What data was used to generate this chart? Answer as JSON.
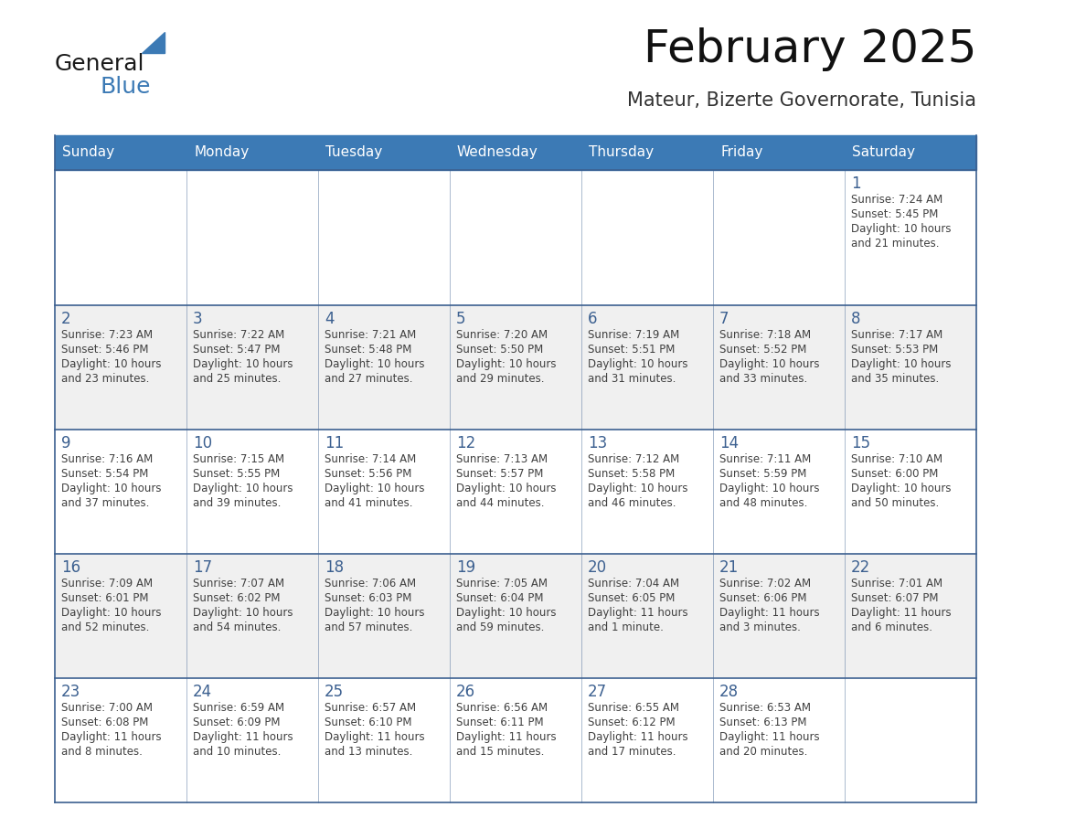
{
  "title": "February 2025",
  "subtitle": "Mateur, Bizerte Governorate, Tunisia",
  "header_color": "#3C7AB5",
  "header_text_color": "#FFFFFF",
  "cell_bg_white": "#FFFFFF",
  "cell_bg_gray": "#F0F0F0",
  "border_color": "#3C6090",
  "day_num_color": "#3C6090",
  "text_color": "#404040",
  "days_of_week": [
    "Sunday",
    "Monday",
    "Tuesday",
    "Wednesday",
    "Thursday",
    "Friday",
    "Saturday"
  ],
  "weeks": [
    [
      {
        "day": "",
        "info": ""
      },
      {
        "day": "",
        "info": ""
      },
      {
        "day": "",
        "info": ""
      },
      {
        "day": "",
        "info": ""
      },
      {
        "day": "",
        "info": ""
      },
      {
        "day": "",
        "info": ""
      },
      {
        "day": "1",
        "info": "Sunrise: 7:24 AM\nSunset: 5:45 PM\nDaylight: 10 hours\nand 21 minutes."
      }
    ],
    [
      {
        "day": "2",
        "info": "Sunrise: 7:23 AM\nSunset: 5:46 PM\nDaylight: 10 hours\nand 23 minutes."
      },
      {
        "day": "3",
        "info": "Sunrise: 7:22 AM\nSunset: 5:47 PM\nDaylight: 10 hours\nand 25 minutes."
      },
      {
        "day": "4",
        "info": "Sunrise: 7:21 AM\nSunset: 5:48 PM\nDaylight: 10 hours\nand 27 minutes."
      },
      {
        "day": "5",
        "info": "Sunrise: 7:20 AM\nSunset: 5:50 PM\nDaylight: 10 hours\nand 29 minutes."
      },
      {
        "day": "6",
        "info": "Sunrise: 7:19 AM\nSunset: 5:51 PM\nDaylight: 10 hours\nand 31 minutes."
      },
      {
        "day": "7",
        "info": "Sunrise: 7:18 AM\nSunset: 5:52 PM\nDaylight: 10 hours\nand 33 minutes."
      },
      {
        "day": "8",
        "info": "Sunrise: 7:17 AM\nSunset: 5:53 PM\nDaylight: 10 hours\nand 35 minutes."
      }
    ],
    [
      {
        "day": "9",
        "info": "Sunrise: 7:16 AM\nSunset: 5:54 PM\nDaylight: 10 hours\nand 37 minutes."
      },
      {
        "day": "10",
        "info": "Sunrise: 7:15 AM\nSunset: 5:55 PM\nDaylight: 10 hours\nand 39 minutes."
      },
      {
        "day": "11",
        "info": "Sunrise: 7:14 AM\nSunset: 5:56 PM\nDaylight: 10 hours\nand 41 minutes."
      },
      {
        "day": "12",
        "info": "Sunrise: 7:13 AM\nSunset: 5:57 PM\nDaylight: 10 hours\nand 44 minutes."
      },
      {
        "day": "13",
        "info": "Sunrise: 7:12 AM\nSunset: 5:58 PM\nDaylight: 10 hours\nand 46 minutes."
      },
      {
        "day": "14",
        "info": "Sunrise: 7:11 AM\nSunset: 5:59 PM\nDaylight: 10 hours\nand 48 minutes."
      },
      {
        "day": "15",
        "info": "Sunrise: 7:10 AM\nSunset: 6:00 PM\nDaylight: 10 hours\nand 50 minutes."
      }
    ],
    [
      {
        "day": "16",
        "info": "Sunrise: 7:09 AM\nSunset: 6:01 PM\nDaylight: 10 hours\nand 52 minutes."
      },
      {
        "day": "17",
        "info": "Sunrise: 7:07 AM\nSunset: 6:02 PM\nDaylight: 10 hours\nand 54 minutes."
      },
      {
        "day": "18",
        "info": "Sunrise: 7:06 AM\nSunset: 6:03 PM\nDaylight: 10 hours\nand 57 minutes."
      },
      {
        "day": "19",
        "info": "Sunrise: 7:05 AM\nSunset: 6:04 PM\nDaylight: 10 hours\nand 59 minutes."
      },
      {
        "day": "20",
        "info": "Sunrise: 7:04 AM\nSunset: 6:05 PM\nDaylight: 11 hours\nand 1 minute."
      },
      {
        "day": "21",
        "info": "Sunrise: 7:02 AM\nSunset: 6:06 PM\nDaylight: 11 hours\nand 3 minutes."
      },
      {
        "day": "22",
        "info": "Sunrise: 7:01 AM\nSunset: 6:07 PM\nDaylight: 11 hours\nand 6 minutes."
      }
    ],
    [
      {
        "day": "23",
        "info": "Sunrise: 7:00 AM\nSunset: 6:08 PM\nDaylight: 11 hours\nand 8 minutes."
      },
      {
        "day": "24",
        "info": "Sunrise: 6:59 AM\nSunset: 6:09 PM\nDaylight: 11 hours\nand 10 minutes."
      },
      {
        "day": "25",
        "info": "Sunrise: 6:57 AM\nSunset: 6:10 PM\nDaylight: 11 hours\nand 13 minutes."
      },
      {
        "day": "26",
        "info": "Sunrise: 6:56 AM\nSunset: 6:11 PM\nDaylight: 11 hours\nand 15 minutes."
      },
      {
        "day": "27",
        "info": "Sunrise: 6:55 AM\nSunset: 6:12 PM\nDaylight: 11 hours\nand 17 minutes."
      },
      {
        "day": "28",
        "info": "Sunrise: 6:53 AM\nSunset: 6:13 PM\nDaylight: 11 hours\nand 20 minutes."
      },
      {
        "day": "",
        "info": ""
      }
    ]
  ]
}
